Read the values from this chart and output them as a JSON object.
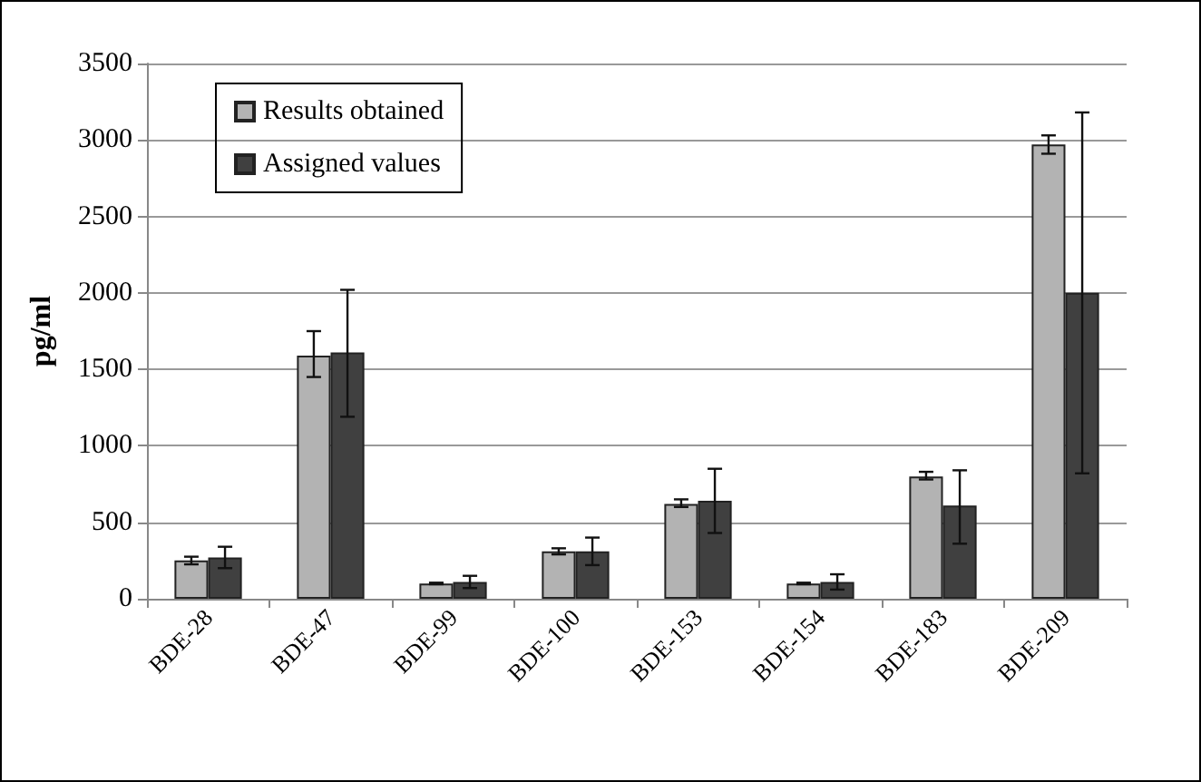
{
  "chart_data": {
    "type": "bar",
    "ylabel": "pg/ml",
    "categories": [
      "BDE-28",
      "BDE-47",
      "BDE-99",
      "BDE-100",
      "BDE-153",
      "BDE-154",
      "BDE-183",
      "BDE-209"
    ],
    "series": [
      {
        "name": "Results obtained",
        "color": "#b3b3b3",
        "values": [
          250,
          1590,
          100,
          310,
          620,
          100,
          800,
          2970
        ],
        "errors": [
          [
            225,
            275
          ],
          [
            1450,
            1750
          ],
          [
            95,
            105
          ],
          [
            290,
            330
          ],
          [
            600,
            650
          ],
          [
            95,
            105
          ],
          [
            780,
            830
          ],
          [
            2910,
            3030
          ]
        ]
      },
      {
        "name": "Assigned values",
        "color": "#404040",
        "values": [
          270,
          1610,
          110,
          310,
          640,
          110,
          610,
          2000
        ],
        "errors": [
          [
            200,
            340
          ],
          [
            1190,
            2020
          ],
          [
            70,
            150
          ],
          [
            220,
            400
          ],
          [
            430,
            850
          ],
          [
            60,
            160
          ],
          [
            360,
            840
          ],
          [
            820,
            3180
          ]
        ]
      }
    ],
    "ylim": [
      0,
      3500
    ],
    "yticks": [
      0,
      500,
      1000,
      1500,
      2000,
      2500,
      3000,
      3500
    ],
    "grid": "y",
    "legend": "top left"
  }
}
